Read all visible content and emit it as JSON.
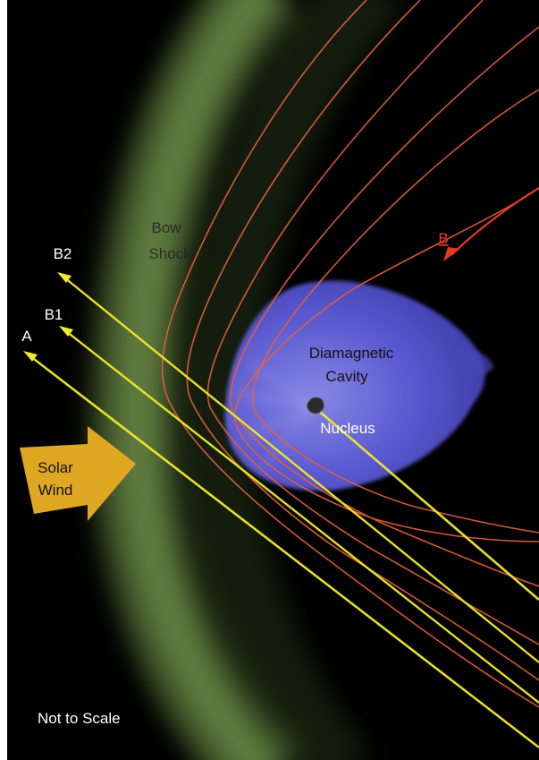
{
  "colors": {
    "background": "#000000",
    "bow_shock": "#7aa050",
    "field_lines": "#e8603c",
    "field_line_b": "#e23a22",
    "trajectories": "#f2ea2a",
    "cavity": "#5a58d6",
    "solar_wind_arrow": "#e0a722",
    "text": "#ffffff",
    "cavity_text": "#111111"
  },
  "labels": {
    "bow_shock_line1": "Bow",
    "bow_shock_line2": "Shock",
    "b2": "B2",
    "b1": "B1",
    "a": "A",
    "b": "B",
    "cavity_line1": "Diamagnetic",
    "cavity_line2": "Cavity",
    "nucleus": "Nucleus",
    "solar_wind_line1": "Solar",
    "solar_wind_line2": "Wind",
    "scale_note": "Not to Scale"
  },
  "icons": {
    "nucleus": "comet-nucleus-icon",
    "solar_wind": "solar-wind-arrow-icon"
  }
}
